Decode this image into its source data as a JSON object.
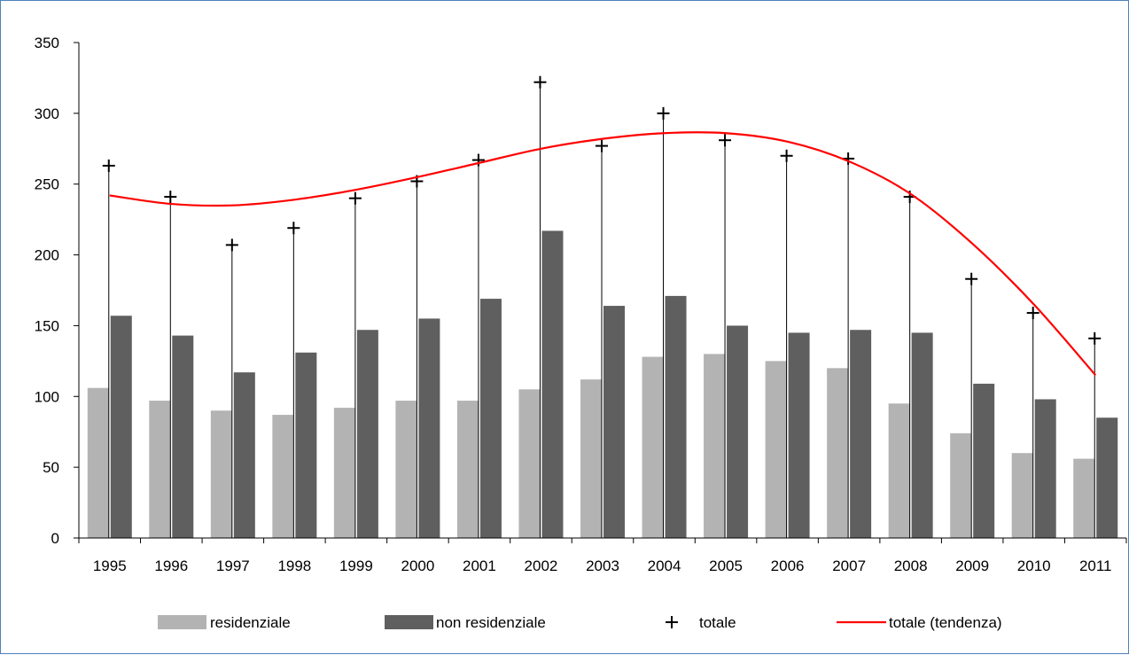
{
  "chart_data": {
    "type": "bar",
    "title": "",
    "xlabel": "",
    "ylabel": "",
    "ylim": [
      0,
      350
    ],
    "yticks": [
      0,
      50,
      100,
      150,
      200,
      250,
      300,
      350
    ],
    "categories": [
      "1995",
      "1996",
      "1997",
      "1998",
      "1999",
      "2000",
      "2001",
      "2002",
      "2003",
      "2004",
      "2005",
      "2006",
      "2007",
      "2008",
      "2009",
      "2010",
      "2011"
    ],
    "series": [
      {
        "name": "residenziale",
        "kind": "bar",
        "color": "#b3b3b3",
        "values": [
          106,
          97,
          90,
          87,
          92,
          97,
          97,
          105,
          112,
          128,
          130,
          125,
          120,
          95,
          74,
          60,
          56
        ]
      },
      {
        "name": "non residenziale",
        "kind": "bar",
        "color": "#5f5f5f",
        "values": [
          157,
          143,
          117,
          131,
          147,
          155,
          169,
          217,
          164,
          171,
          150,
          145,
          147,
          145,
          109,
          98,
          85
        ]
      },
      {
        "name": "totale",
        "kind": "marker",
        "marker": "+",
        "color": "#000000",
        "values": [
          263,
          241,
          207,
          219,
          240,
          252,
          267,
          322,
          277,
          300,
          281,
          270,
          268,
          241,
          183,
          159,
          141
        ]
      },
      {
        "name": "totale (tendenza)",
        "kind": "trendline",
        "color": "#ff0000",
        "values": [
          242,
          236,
          235,
          239,
          246,
          255,
          265,
          275,
          282,
          286,
          286,
          280,
          266,
          243,
          208,
          165,
          115
        ]
      }
    ],
    "grid": false,
    "legend_position": "bottom"
  }
}
